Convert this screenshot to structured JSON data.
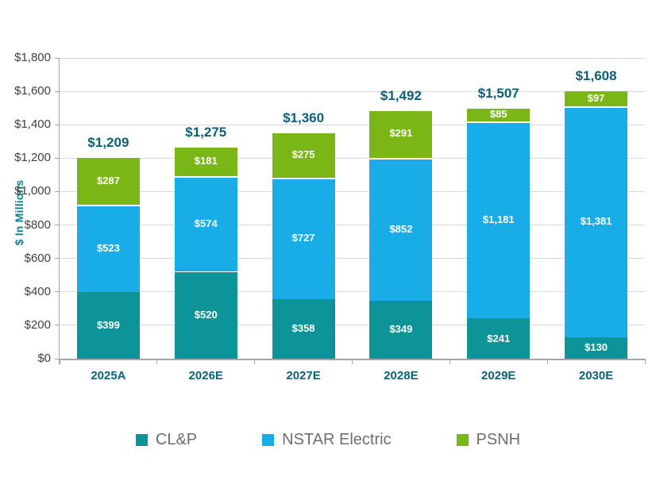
{
  "chart_data": {
    "type": "bar",
    "stacked": true,
    "title": "",
    "ylabel": "$ In Millions",
    "ylim": [
      0,
      1800
    ],
    "ytick_step": 200,
    "yticks": [
      "$0",
      "$200",
      "$400",
      "$600",
      "$800",
      "$1,000",
      "$1,200",
      "$1,400",
      "$1,600",
      "$1,800"
    ],
    "categories": [
      "2025A",
      "2026E",
      "2027E",
      "2028E",
      "2029E",
      "2030E"
    ],
    "series": [
      {
        "name": "CL&P",
        "color": "#0d9498",
        "values": [
          399,
          520,
          358,
          349,
          241,
          130
        ],
        "labels": [
          "$399",
          "$520",
          "$358",
          "$349",
          "$241",
          "$130"
        ]
      },
      {
        "name": "NSTAR Electric",
        "color": "#19ade7",
        "values": [
          523,
          574,
          727,
          852,
          1181,
          1381
        ],
        "labels": [
          "$523",
          "$574",
          "$727",
          "$852",
          "$1,181",
          "$1,381"
        ]
      },
      {
        "name": "PSNH",
        "color": "#7ab616",
        "values": [
          287,
          181,
          275,
          291,
          85,
          97
        ],
        "labels": [
          "$287",
          "$181",
          "$275",
          "$291",
          "$85",
          "$97"
        ]
      }
    ],
    "totals": [
      1209,
      1275,
      1360,
      1492,
      1507,
      1608
    ],
    "total_labels": [
      "$1,209",
      "$1,275",
      "$1,360",
      "$1,492",
      "$1,507",
      "$1,608"
    ],
    "grid": true,
    "legend_position": "bottom"
  },
  "colors": {
    "background": "#ffffff",
    "total_label": "#0d5f75",
    "x_tick_label": "#0d6076",
    "y_tick_label": "#404040",
    "ylabel": "#0e808d",
    "gridline": "#d9d9d9",
    "axis_line": "#a6a6a6",
    "segment_label": "#ffffff",
    "legend_text": "#6e6e6e",
    "segment_separator": "#ffffff"
  }
}
